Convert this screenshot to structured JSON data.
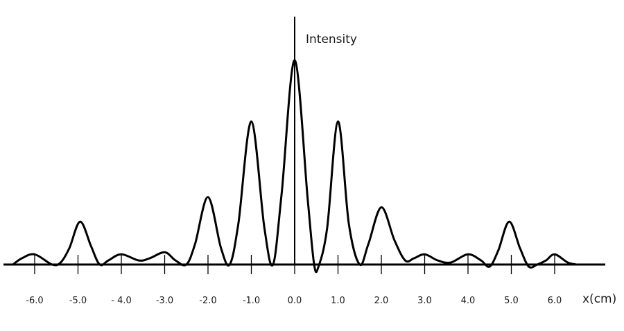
{
  "chart_data": {
    "type": "line",
    "ylabel": "Intensity",
    "xlabel": "x(cm)",
    "xlim": [
      -6.5,
      6.5
    ],
    "ylim": [
      0,
      1
    ],
    "x_ticks": [
      -6.0,
      -5.0,
      -4.0,
      -3.0,
      -2.0,
      -1.0,
      0.0,
      1.0,
      2.0,
      3.0,
      4.0,
      5.0,
      6.0
    ],
    "x_tick_labels": [
      "-6.0",
      "-5.0",
      "- 4.0",
      "-3.0",
      "-2.0",
      "-1.0",
      "0.0",
      "1.0",
      "2.0",
      "3.0",
      "4.0",
      "5.0",
      "6.0"
    ],
    "series": [
      {
        "x": [
          -6.5,
          -6.3,
          -6.0,
          -5.6,
          -5.4,
          -5.2,
          -4.95,
          -4.7,
          -4.5,
          -4.3,
          -4.0,
          -3.6,
          -3.35,
          -3.0,
          -2.75,
          -2.5,
          -2.3,
          -2.0,
          -1.7,
          -1.5,
          -1.3,
          -1.0,
          -0.7,
          -0.5,
          -0.3,
          0.0,
          0.3,
          0.45,
          0.55,
          0.75,
          1.0,
          1.25,
          1.5,
          1.7,
          2.0,
          2.3,
          2.55,
          2.75,
          3.0,
          3.3,
          3.6,
          4.0,
          4.3,
          4.5,
          4.7,
          4.95,
          5.2,
          5.4,
          5.6,
          5.8,
          6.0,
          6.3,
          6.5
        ],
        "y": [
          0.0,
          0.03,
          0.05,
          0.0,
          0.01,
          0.08,
          0.21,
          0.09,
          0.0,
          0.02,
          0.05,
          0.02,
          0.03,
          0.06,
          0.02,
          0.0,
          0.1,
          0.33,
          0.08,
          0.0,
          0.2,
          0.7,
          0.18,
          0.0,
          0.35,
          1.0,
          0.32,
          0.0,
          -0.01,
          0.18,
          0.7,
          0.2,
          0.0,
          0.1,
          0.28,
          0.12,
          0.02,
          0.03,
          0.05,
          0.02,
          0.01,
          0.05,
          0.02,
          -0.01,
          0.07,
          0.21,
          0.08,
          -0.01,
          0.0,
          0.02,
          0.05,
          0.01,
          0.0
        ]
      }
    ]
  }
}
